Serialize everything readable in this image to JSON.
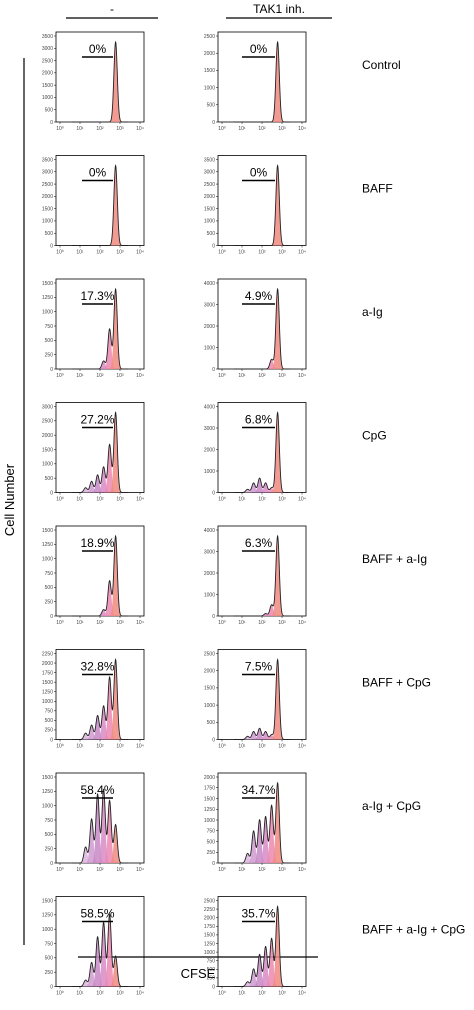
{
  "chart_data": {
    "type": "histogram-grid",
    "columns": [
      "-",
      "TAK1 inh."
    ],
    "rows": [
      "Control",
      "BAFF",
      "a-Ig",
      "CpG",
      "BAFF + a-Ig",
      "BAFF + CpG",
      "a-Ig + CpG",
      "BAFF + a-Ig + CpG"
    ],
    "xlabel": "CFSE",
    "ylabel": "Cell Number",
    "x_scale": "log",
    "x_ticks": [
      "10⁰",
      "10¹",
      "10²",
      "10³",
      "10⁴"
    ],
    "colors": {
      "parent_peak": "#f08a80",
      "division_1": "#ec87b2",
      "division_2": "#d889c6",
      "division_3": "#c78ac6",
      "division_4": "#cf9ad0",
      "division_5": "#dcb3dd",
      "outline": "#222222"
    },
    "panels": [
      {
        "row": "Control",
        "column": "-",
        "percent_divided": "0%",
        "ymax": 3000,
        "yticks": [
          0,
          500,
          1000,
          1500,
          2000,
          2500,
          3000,
          3500
        ],
        "peaks": [
          1.0,
          0,
          0,
          0,
          0,
          0
        ]
      },
      {
        "row": "Control",
        "column": "TAK1 inh.",
        "percent_divided": "0%",
        "ymax": 2500,
        "yticks": [
          0,
          500,
          1000,
          1500,
          2000,
          2500
        ],
        "peaks": [
          1.0,
          0,
          0,
          0,
          0,
          0
        ]
      },
      {
        "row": "BAFF",
        "column": "-",
        "percent_divided": "0%",
        "ymax": 3000,
        "yticks": [
          0,
          500,
          1000,
          1500,
          2000,
          2500,
          3000,
          3500
        ],
        "peaks": [
          1.0,
          0,
          0,
          0,
          0,
          0
        ]
      },
      {
        "row": "BAFF",
        "column": "TAK1 inh.",
        "percent_divided": "0%",
        "ymax": 3000,
        "yticks": [
          0,
          500,
          1000,
          1500,
          2000,
          2500,
          3000,
          3500
        ],
        "peaks": [
          1.0,
          0,
          0,
          0,
          0,
          0
        ]
      },
      {
        "row": "a-Ig",
        "column": "-",
        "percent_divided": "17.3%",
        "ymax": 1500,
        "yticks": [
          0,
          250,
          500,
          750,
          1000,
          1250,
          1500
        ],
        "peaks": [
          1.0,
          0.5,
          0.1,
          0,
          0,
          0
        ]
      },
      {
        "row": "a-Ig",
        "column": "TAK1 inh.",
        "percent_divided": "4.9%",
        "ymax": 4000,
        "yticks": [
          0,
          1000,
          2000,
          3000,
          4000
        ],
        "peaks": [
          1.0,
          0.12,
          0,
          0,
          0,
          0
        ]
      },
      {
        "row": "CpG",
        "column": "-",
        "percent_divided": "27.2%",
        "ymax": 3000,
        "yticks": [
          0,
          500,
          1000,
          1500,
          2000,
          2500,
          3000
        ],
        "peaks": [
          1.0,
          0.6,
          0.32,
          0.22,
          0.14,
          0.06
        ]
      },
      {
        "row": "CpG",
        "column": "TAK1 inh.",
        "percent_divided": "6.8%",
        "ymax": 4000,
        "yticks": [
          0,
          1000,
          2000,
          3000,
          4000
        ],
        "peaks": [
          1.0,
          0.06,
          0.12,
          0.18,
          0.12,
          0.04
        ]
      },
      {
        "row": "BAFF + a-Ig",
        "column": "-",
        "percent_divided": "18.9%",
        "ymax": 1500,
        "yticks": [
          0,
          250,
          500,
          750,
          1000,
          1250,
          1500
        ],
        "peaks": [
          1.0,
          0.44,
          0.08,
          0,
          0,
          0
        ]
      },
      {
        "row": "BAFF + a-Ig",
        "column": "TAK1 inh.",
        "percent_divided": "6.3%",
        "ymax": 4000,
        "yticks": [
          0,
          1000,
          2000,
          3000,
          4000
        ],
        "peaks": [
          1.0,
          0.14,
          0.03,
          0,
          0,
          0
        ]
      },
      {
        "row": "BAFF + CpG",
        "column": "-",
        "percent_divided": "32.8%",
        "ymax": 2000,
        "yticks": [
          0,
          250,
          500,
          750,
          1000,
          1250,
          1500,
          1750,
          2000,
          2250
        ],
        "peaks": [
          1.0,
          0.78,
          0.42,
          0.3,
          0.18,
          0.08
        ]
      },
      {
        "row": "BAFF + CpG",
        "column": "TAK1 inh.",
        "percent_divided": "7.5%",
        "ymax": 2500,
        "yticks": [
          0,
          500,
          1000,
          1500,
          2000,
          2500
        ],
        "peaks": [
          1.0,
          0.06,
          0.1,
          0.14,
          0.1,
          0.04
        ]
      },
      {
        "row": "a-Ig + CpG",
        "column": "-",
        "percent_divided": "58.4%",
        "ymax": 1500,
        "yticks": [
          0,
          250,
          500,
          750,
          1000,
          1250,
          1500
        ],
        "peaks": [
          0.48,
          0.78,
          0.92,
          0.86,
          0.55,
          0.2
        ]
      },
      {
        "row": "a-Ig + CpG",
        "column": "TAK1 inh.",
        "percent_divided": "34.7%",
        "ymax": 2000,
        "yticks": [
          0,
          250,
          500,
          750,
          1000,
          1250,
          1500,
          1750,
          2000
        ],
        "peaks": [
          1.0,
          0.72,
          0.58,
          0.54,
          0.4,
          0.12
        ]
      },
      {
        "row": "BAFF + a-Ig + CpG",
        "column": "-",
        "percent_divided": "58.5%",
        "ymax": 1500,
        "yticks": [
          0,
          250,
          500,
          750,
          1000,
          1250,
          1500
        ],
        "peaks": [
          0.38,
          0.9,
          0.8,
          0.62,
          0.3,
          0.08
        ]
      },
      {
        "row": "BAFF + a-Ig + CpG",
        "column": "TAK1 inh.",
        "percent_divided": "35.7%",
        "ymax": 2500,
        "yticks": [
          0,
          250,
          500,
          750,
          1000,
          1250,
          1500,
          1750,
          2000,
          2250,
          2500
        ],
        "peaks": [
          1.0,
          0.6,
          0.5,
          0.4,
          0.22,
          0.06
        ]
      }
    ]
  }
}
